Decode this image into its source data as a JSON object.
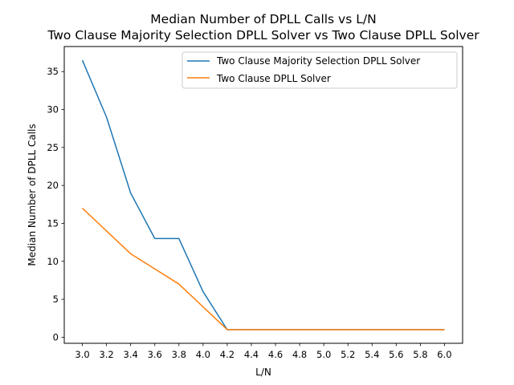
{
  "chart_data": {
    "type": "line",
    "title": "Median Number of DPLL Calls vs L/N",
    "subtitle": "Two Clause Majority Selection DPLL Solver vs Two Clause DPLL Solver",
    "xlabel": "L/N",
    "ylabel": "Median Number of DPLL Calls",
    "x": [
      3.0,
      3.2,
      3.4,
      3.6,
      3.8,
      4.0,
      4.2,
      4.4,
      4.6,
      4.8,
      5.0,
      5.2,
      5.4,
      5.6,
      5.8,
      6.0
    ],
    "xticks": [
      "3.0",
      "3.2",
      "3.4",
      "3.6",
      "3.8",
      "4.0",
      "4.2",
      "4.4",
      "4.6",
      "4.8",
      "5.0",
      "5.2",
      "5.4",
      "5.6",
      "5.8",
      "6.0"
    ],
    "yticks": [
      "0",
      "5",
      "10",
      "15",
      "20",
      "25",
      "30",
      "35"
    ],
    "xlim": [
      2.85,
      6.15
    ],
    "ylim": [
      -0.8,
      38.3
    ],
    "grid": false,
    "legend": "upper right",
    "series": [
      {
        "name": "Two Clause Majority Selection DPLL Solver",
        "color": "#1f77b4",
        "values": [
          36.5,
          29,
          19,
          13,
          13,
          6,
          1,
          1,
          1,
          1,
          1,
          1,
          1,
          1,
          1,
          1
        ]
      },
      {
        "name": "Two Clause DPLL Solver",
        "color": "#ff7f0e",
        "values": [
          17,
          14,
          11,
          9,
          7,
          4,
          1,
          1,
          1,
          1,
          1,
          1,
          1,
          1,
          1,
          1
        ]
      }
    ]
  }
}
